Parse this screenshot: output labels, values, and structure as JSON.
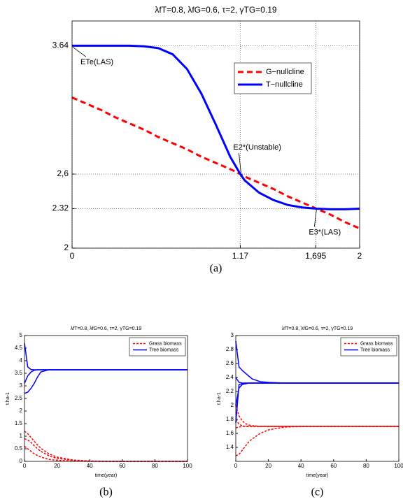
{
  "chart_data": [
    {
      "type": "line",
      "title": "λfT=0.8, λfG=0.6, τ=2, γTG=0.19",
      "caption": "(a)",
      "x": [
        0,
        0.1,
        0.2,
        0.3,
        0.4,
        0.5,
        0.6,
        0.7,
        0.8,
        0.9,
        1.0,
        1.1,
        1.17,
        1.2,
        1.3,
        1.4,
        1.5,
        1.6,
        1.7,
        1.8,
        1.9,
        2.0
      ],
      "series": [
        {
          "name": "G−nullcline",
          "color": "#ff0000",
          "dashed": true,
          "values": [
            3.22,
            3.17,
            3.12,
            3.06,
            3.01,
            2.96,
            2.9,
            2.85,
            2.8,
            2.74,
            2.69,
            2.64,
            2.6,
            2.58,
            2.53,
            2.48,
            2.42,
            2.37,
            2.32,
            2.27,
            2.21,
            2.16
          ]
        },
        {
          "name": "T−nullcline",
          "color": "#0000ff",
          "dashed": false,
          "values": [
            3.64,
            3.64,
            3.64,
            3.64,
            3.64,
            3.635,
            3.62,
            3.57,
            3.45,
            3.25,
            3.0,
            2.74,
            2.6,
            2.55,
            2.45,
            2.39,
            2.35,
            2.33,
            2.32,
            2.315,
            2.315,
            2.32
          ]
        }
      ],
      "xlim": [
        0,
        2
      ],
      "xticks": [
        0,
        1.17,
        {
          "value": 1.695,
          "label": "1,695"
        },
        2
      ],
      "ylim": [
        2,
        3.84
      ],
      "yticks": [
        2,
        2.32,
        {
          "value": 2.6,
          "label": "2,6"
        },
        3.64
      ],
      "grid": true,
      "legend": "upper-right",
      "annotations": [
        {
          "text": "ETe(LAS)",
          "x": 0,
          "y": 3.64
        },
        {
          "text": "E2*(Unstable)",
          "x": 1.17,
          "y": 2.6
        },
        {
          "text": "E3*(LAS)",
          "x": 1.695,
          "y": 2.32
        }
      ]
    },
    {
      "type": "line",
      "title": "λfT=0.8, λfG=0.6, τ=2, γTG=0.19",
      "caption": "(b)",
      "x_label": "time(year)",
      "y_label": "t.ha-1",
      "x": [
        0,
        2,
        4,
        6,
        8,
        10,
        15,
        20,
        30,
        40,
        50,
        60,
        80,
        100
      ],
      "series": [
        {
          "name": "Grass biomass",
          "color": "#ff0000",
          "dashed": true,
          "lines": [
            [
              1.2,
              1.1,
              0.95,
              0.8,
              0.65,
              0.52,
              0.3,
              0.17,
              0.05,
              0.015,
              0,
              0,
              0,
              0
            ],
            [
              0.9,
              0.85,
              0.75,
              0.62,
              0.5,
              0.4,
              0.22,
              0.12,
              0.04,
              0.01,
              0,
              0,
              0,
              0
            ],
            [
              0.6,
              0.5,
              0.4,
              0.3,
              0.23,
              0.17,
              0.08,
              0.04,
              0.01,
              0,
              0,
              0,
              0,
              0
            ]
          ]
        },
        {
          "name": "Tree biomass",
          "color": "#0000ff",
          "dashed": false,
          "lines": [
            [
              4.7,
              3.75,
              3.65,
              3.64,
              3.64,
              3.64,
              3.64,
              3.64,
              3.64,
              3.64,
              3.64,
              3.64,
              3.64,
              3.64
            ],
            [
              2.7,
              2.75,
              2.9,
              3.1,
              3.35,
              3.55,
              3.64,
              3.64,
              3.64,
              3.64,
              3.64,
              3.64,
              3.64,
              3.64
            ],
            [
              3.1,
              3.4,
              3.55,
              3.62,
              3.64,
              3.64,
              3.64,
              3.64,
              3.64,
              3.64,
              3.64,
              3.64,
              3.64,
              3.64
            ]
          ]
        }
      ],
      "xlim": [
        0,
        100
      ],
      "xticks": [
        0,
        20,
        40,
        60,
        80,
        100
      ],
      "ylim": [
        0,
        5
      ],
      "yticks": [
        0,
        0.5,
        1,
        1.5,
        2,
        2.5,
        3,
        3.5,
        4,
        4.5,
        5
      ],
      "grid": false,
      "legend": "upper-right"
    },
    {
      "type": "line",
      "title": "λfT=0.8, λfG=0.6, τ=2, γTG=0.19",
      "caption": "(c)",
      "x_label": "time(year)",
      "y_label": "t.ha-1",
      "x": [
        0,
        2,
        4,
        6,
        8,
        10,
        15,
        20,
        30,
        40,
        50,
        60,
        80,
        100
      ],
      "series": [
        {
          "name": "Grass biomass",
          "color": "#ff0000",
          "dashed": true,
          "lines": [
            [
              2.0,
              1.85,
              1.78,
              1.74,
              1.72,
              1.71,
              1.7,
              1.7,
              1.7,
              1.7,
              1.7,
              1.7,
              1.7,
              1.7
            ],
            [
              1.8,
              1.73,
              1.71,
              1.7,
              1.7,
              1.7,
              1.7,
              1.7,
              1.7,
              1.7,
              1.7,
              1.7,
              1.7,
              1.7
            ],
            [
              1.28,
              1.3,
              1.36,
              1.42,
              1.48,
              1.52,
              1.6,
              1.65,
              1.69,
              1.7,
              1.7,
              1.7,
              1.7,
              1.7
            ],
            [
              1.68,
              1.69,
              1.7,
              1.7,
              1.7,
              1.7,
              1.7,
              1.7,
              1.7,
              1.7,
              1.7,
              1.7,
              1.7,
              1.7
            ]
          ]
        },
        {
          "name": "Tree biomass",
          "color": "#0000ff",
          "dashed": false,
          "lines": [
            [
              2.92,
              2.55,
              2.5,
              2.46,
              2.42,
              2.38,
              2.34,
              2.33,
              2.32,
              2.32,
              2.32,
              2.32,
              2.32,
              2.32
            ],
            [
              2.4,
              2.33,
              2.32,
              2.32,
              2.32,
              2.32,
              2.32,
              2.32,
              2.32,
              2.32,
              2.32,
              2.32,
              2.32,
              2.32
            ],
            [
              2.0,
              2.25,
              2.3,
              2.31,
              2.32,
              2.32,
              2.32,
              2.32,
              2.32,
              2.32,
              2.32,
              2.32,
              2.32,
              2.32
            ],
            [
              1.75,
              2.3,
              2.31,
              2.32,
              2.32,
              2.32,
              2.32,
              2.32,
              2.32,
              2.32,
              2.32,
              2.32,
              2.32,
              2.32
            ]
          ]
        }
      ],
      "xlim": [
        0,
        100
      ],
      "xticks": [
        0,
        20,
        40,
        60,
        80,
        100
      ],
      "ylim": [
        1.2,
        3
      ],
      "yticks": [
        1.4,
        1.6,
        1.8,
        2,
        2.2,
        2.4,
        2.6,
        2.8,
        3
      ],
      "grid": false,
      "legend": "upper-right"
    }
  ]
}
